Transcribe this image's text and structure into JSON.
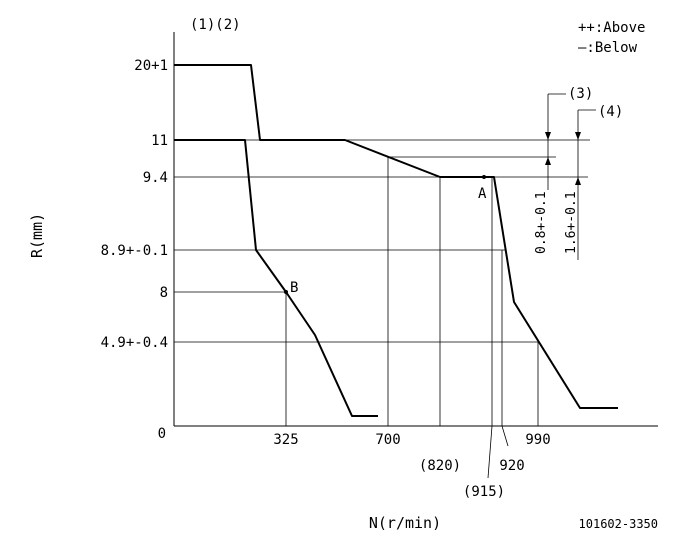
{
  "header": {
    "labels_left": "(1)(2)",
    "legend_above": "++:Above",
    "legend_below": "—:Below"
  },
  "axes": {
    "y_label": "R(mm)",
    "x_label": "N(r/min)"
  },
  "y_ticks": [
    "20+1",
    "11",
    "9.4",
    "8.9+-0.1",
    "8",
    "4.9+-0.4",
    "0"
  ],
  "x_ticks": [
    "325",
    "700",
    "(820)",
    "(915)",
    "920",
    "990"
  ],
  "points": {
    "a": "A",
    "b": "B"
  },
  "dims": {
    "label_3": "(3)",
    "label_4": "(4)",
    "value_3": "0.8+-0.1",
    "value_4": "1.6+-0.1"
  },
  "drawing_code": "101602-3350"
}
